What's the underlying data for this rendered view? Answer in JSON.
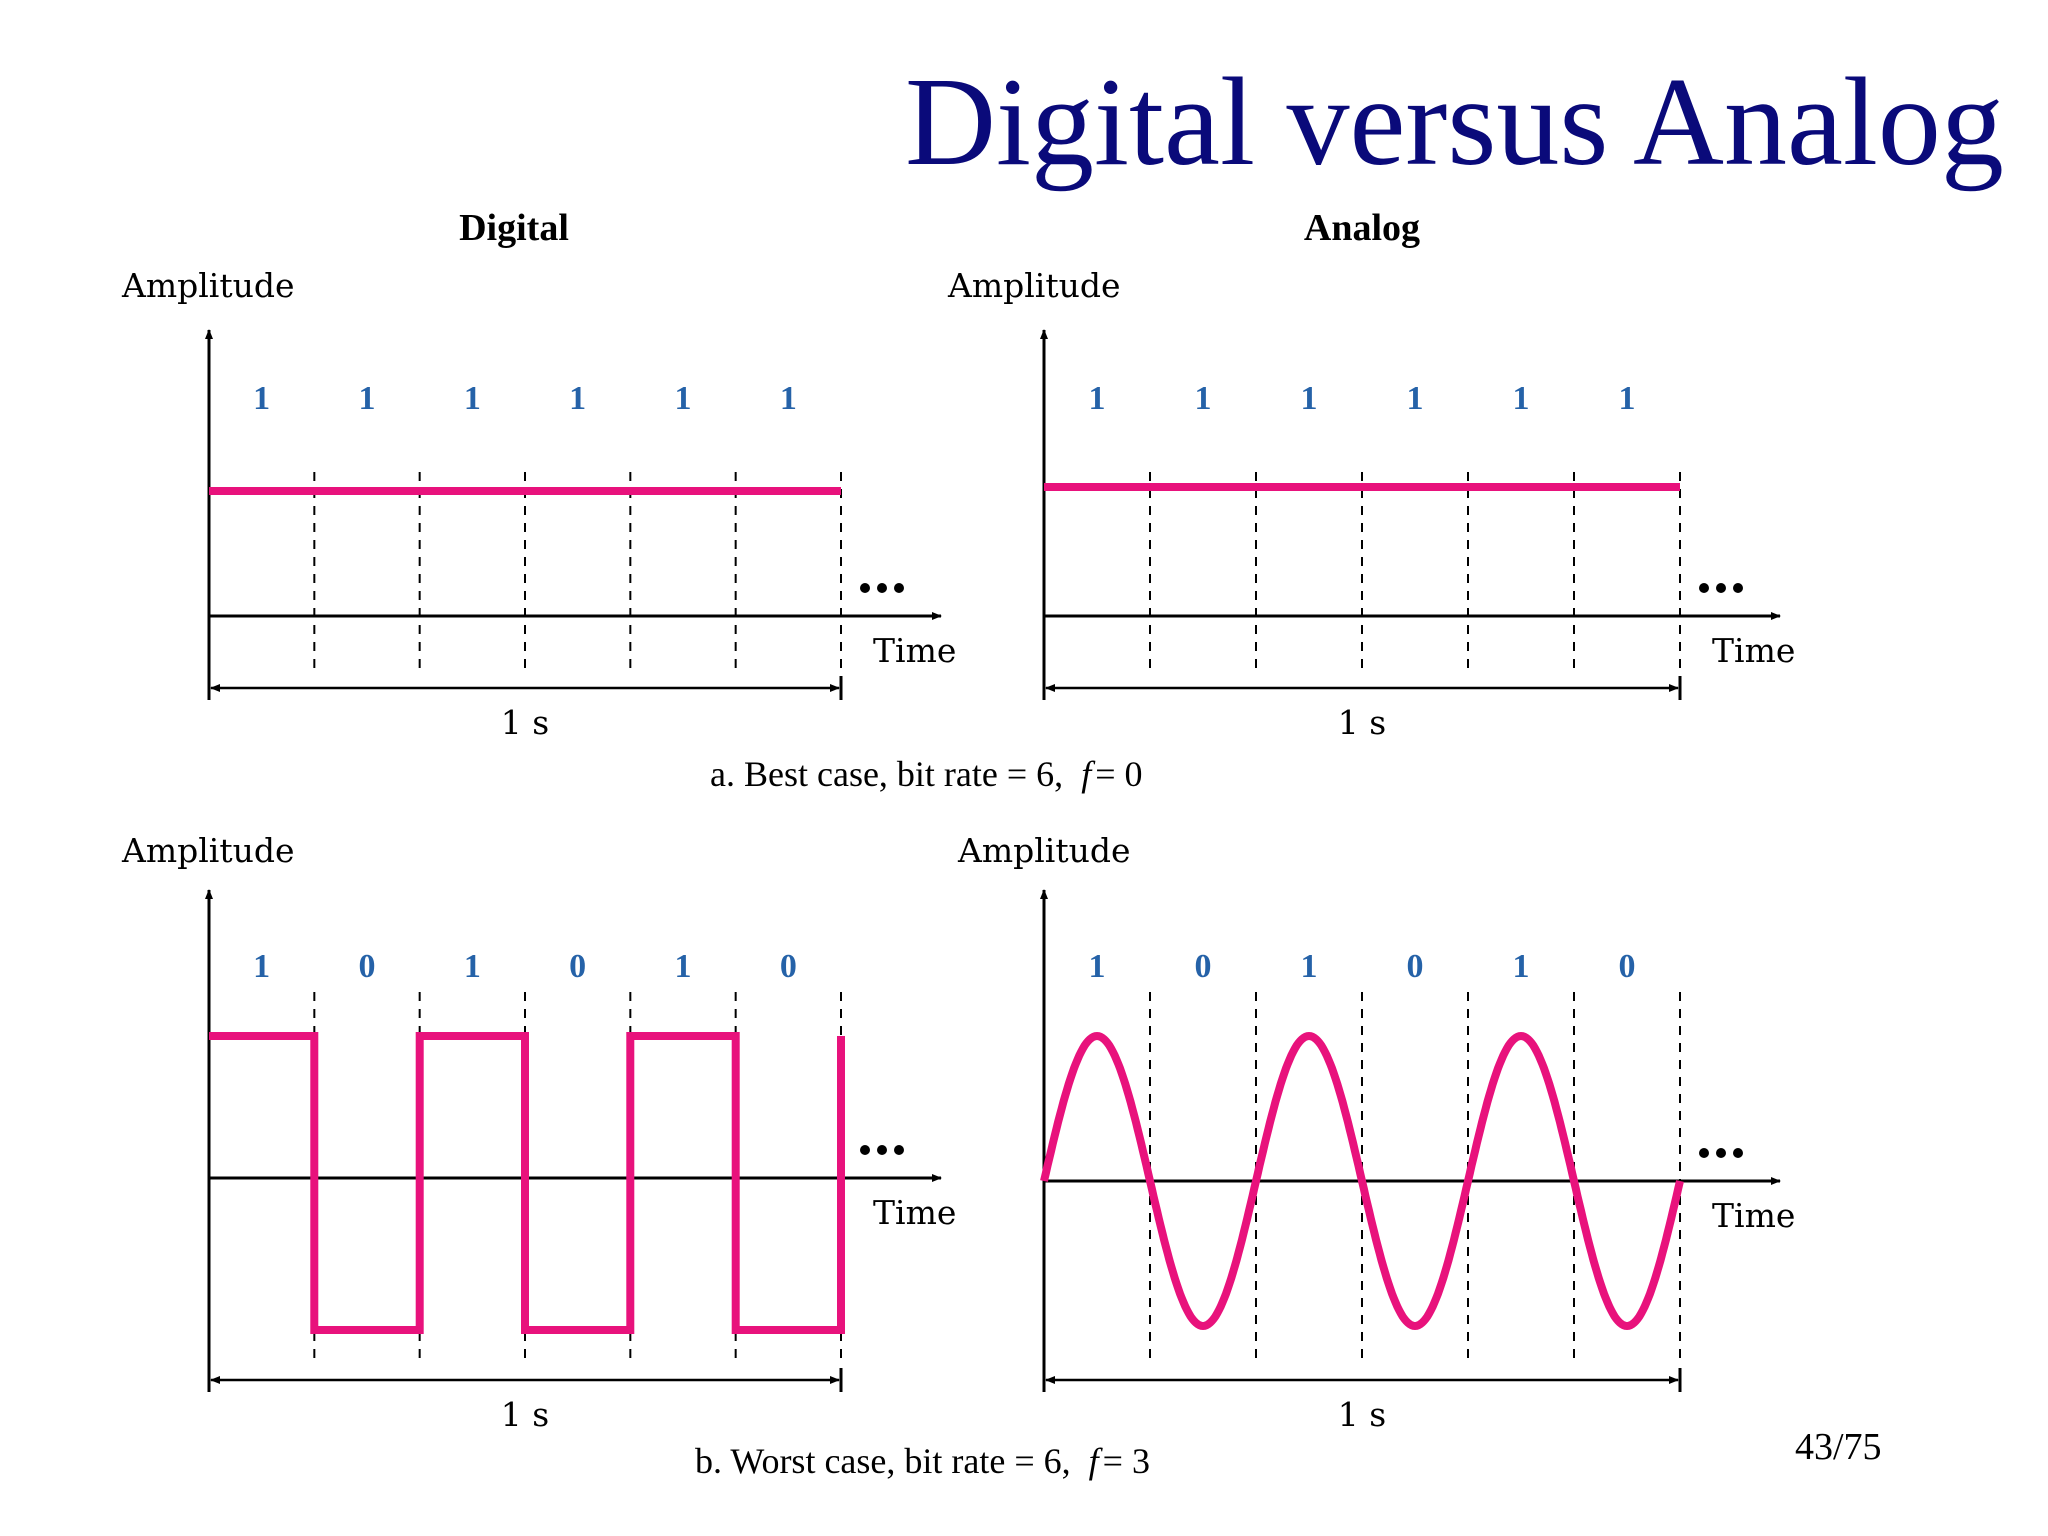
{
  "slide": {
    "title": "Digital versus Analog",
    "page_number": "43/75",
    "signal_color": "#e8127c",
    "bit_color": "#2562a8",
    "title_color": "#0a0a7a"
  },
  "headers": {
    "digital": "Digital",
    "analog": "Analog"
  },
  "labels": {
    "amplitude": "Amplitude",
    "time": "Time",
    "duration": "1 s",
    "continuation": "..."
  },
  "captions": {
    "a": {
      "text": "a. Best case, bit rate = 6,",
      "var": "f",
      "eq": "= 0"
    },
    "b": {
      "text": "b. Worst case, bit rate = 6,",
      "var": "f",
      "eq": "= 3"
    }
  },
  "chart_data": [
    {
      "name": "a-digital",
      "type": "line",
      "bits": [
        "1",
        "1",
        "1",
        "1",
        "1",
        "1"
      ],
      "signal": "digital",
      "levels": [
        1,
        1,
        1,
        1,
        1,
        1
      ]
    },
    {
      "name": "a-analog",
      "type": "line",
      "bits": [
        "1",
        "1",
        "1",
        "1",
        "1",
        "1"
      ],
      "signal": "analog",
      "frequency": 0
    },
    {
      "name": "b-digital",
      "type": "line",
      "bits": [
        "1",
        "0",
        "1",
        "0",
        "1",
        "0"
      ],
      "signal": "digital",
      "levels": [
        1,
        -1,
        1,
        -1,
        1,
        -1
      ]
    },
    {
      "name": "b-analog",
      "type": "line",
      "bits": [
        "1",
        "0",
        "1",
        "0",
        "1",
        "0"
      ],
      "signal": "analog",
      "frequency": 3
    }
  ]
}
